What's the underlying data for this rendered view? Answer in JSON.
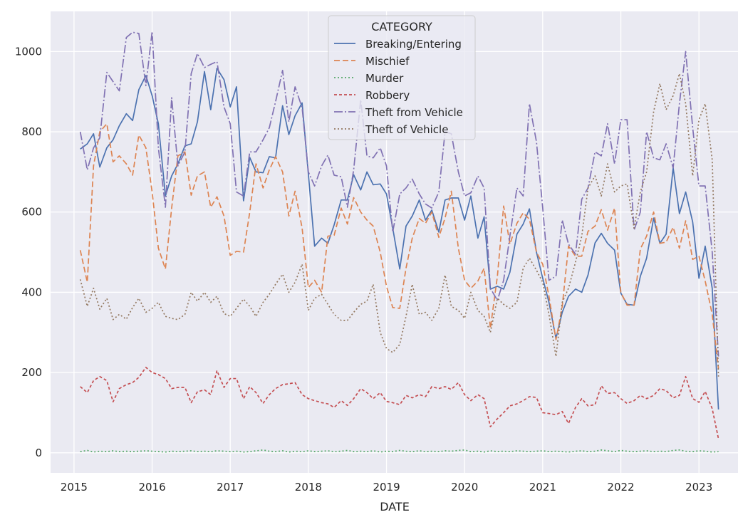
{
  "chart_data": {
    "type": "line",
    "xlabel": "DATE",
    "ylabel": "",
    "xlim": [
      2014.7,
      2023.5
    ],
    "ylim": [
      -50,
      1100
    ],
    "grid": true,
    "x_ticks": [
      2015,
      2016,
      2017,
      2018,
      2019,
      2020,
      2021,
      2022,
      2023
    ],
    "x_tick_labels": [
      "2015",
      "2016",
      "2017",
      "2018",
      "2019",
      "2020",
      "2021",
      "2022",
      "2023"
    ],
    "y_ticks": [
      0,
      200,
      400,
      600,
      800,
      1000
    ],
    "y_tick_labels": [
      "0",
      "200",
      "400",
      "600",
      "800",
      "1000"
    ],
    "legend": {
      "title": "CATEGORY",
      "placement": "top-center"
    },
    "x": [
      2015.08,
      2015.17,
      2015.25,
      2015.33,
      2015.42,
      2015.5,
      2015.58,
      2015.67,
      2015.75,
      2015.83,
      2015.92,
      2016.0,
      2016.08,
      2016.17,
      2016.25,
      2016.33,
      2016.42,
      2016.5,
      2016.58,
      2016.67,
      2016.75,
      2016.83,
      2016.92,
      2017.0,
      2017.08,
      2017.17,
      2017.25,
      2017.33,
      2017.42,
      2017.5,
      2017.58,
      2017.67,
      2017.75,
      2017.83,
      2017.92,
      2018.0,
      2018.08,
      2018.17,
      2018.25,
      2018.33,
      2018.42,
      2018.5,
      2018.58,
      2018.67,
      2018.75,
      2018.83,
      2018.92,
      2019.0,
      2019.08,
      2019.17,
      2019.25,
      2019.33,
      2019.42,
      2019.5,
      2019.58,
      2019.67,
      2019.75,
      2019.83,
      2019.92,
      2020.0,
      2020.08,
      2020.17,
      2020.25,
      2020.33,
      2020.42,
      2020.5,
      2020.58,
      2020.67,
      2020.75,
      2020.83,
      2020.92,
      2021.0,
      2021.08,
      2021.17,
      2021.25,
      2021.33,
      2021.42,
      2021.5,
      2021.58,
      2021.67,
      2021.75,
      2021.83,
      2021.92,
      2022.0,
      2022.08,
      2022.17,
      2022.25,
      2022.33,
      2022.42,
      2022.5,
      2022.58,
      2022.67,
      2022.75,
      2022.83,
      2022.92,
      2023.0,
      2023.08,
      2023.17,
      2023.25
    ],
    "series": [
      {
        "name": "Breaking/Entering",
        "color": "#4c72b0",
        "dash": "solid",
        "values": [
          757,
          770,
          795,
          712,
          760,
          780,
          815,
          845,
          828,
          905,
          940,
          890,
          820,
          640,
          690,
          720,
          765,
          770,
          825,
          950,
          855,
          958,
          930,
          862,
          912,
          628,
          736,
          700,
          698,
          738,
          735,
          865,
          793,
          840,
          872,
          695,
          515,
          535,
          522,
          568,
          630,
          630,
          693,
          655,
          700,
          668,
          670,
          645,
          560,
          458,
          565,
          590,
          630,
          580,
          605,
          550,
          630,
          635,
          635,
          580,
          640,
          535,
          588,
          408,
          415,
          408,
          450,
          545,
          570,
          608,
          500,
          435,
          375,
          285,
          350,
          390,
          408,
          400,
          443,
          523,
          547,
          522,
          505,
          398,
          370,
          368,
          440,
          485,
          585,
          522,
          545,
          710,
          596,
          650,
          575,
          435,
          515,
          410,
          108
        ]
      },
      {
        "name": "Mischief",
        "color": "#dd8452",
        "dash": "8,4",
        "values": [
          505,
          425,
          715,
          800,
          820,
          725,
          740,
          720,
          692,
          792,
          760,
          650,
          510,
          458,
          610,
          740,
          750,
          642,
          690,
          700,
          612,
          638,
          590,
          492,
          502,
          500,
          600,
          720,
          660,
          705,
          738,
          700,
          590,
          652,
          560,
          412,
          430,
          400,
          540,
          542,
          610,
          570,
          636,
          600,
          580,
          565,
          500,
          415,
          362,
          360,
          460,
          535,
          584,
          572,
          600,
          537,
          585,
          652,
          510,
          430,
          410,
          428,
          460,
          310,
          440,
          615,
          520,
          572,
          598,
          582,
          500,
          470,
          390,
          282,
          365,
          515,
          490,
          490,
          552,
          565,
          606,
          555,
          610,
          400,
          368,
          368,
          508,
          540,
          600,
          522,
          525,
          562,
          510,
          578,
          482,
          490,
          428,
          345,
          210
        ]
      },
      {
        "name": "Murder",
        "color": "#55a868",
        "dash": "2,3",
        "values": [
          3,
          6,
          2,
          4,
          3,
          5,
          3,
          4,
          3,
          4,
          5,
          4,
          3,
          2,
          4,
          3,
          4,
          5,
          3,
          4,
          3,
          5,
          4,
          3,
          4,
          2,
          3,
          5,
          7,
          4,
          3,
          5,
          2,
          4,
          3,
          5,
          3,
          4,
          5,
          3,
          4,
          6,
          3,
          4,
          3,
          5,
          2,
          4,
          3,
          6,
          4,
          3,
          5,
          3,
          4,
          3,
          5,
          4,
          6,
          7,
          3,
          4,
          2,
          5,
          3,
          4,
          3,
          5,
          4,
          3,
          4,
          5,
          3,
          4,
          3,
          2,
          4,
          5,
          3,
          4,
          7,
          5,
          3,
          6,
          4,
          3,
          4,
          5,
          3,
          4,
          3,
          6,
          7,
          4,
          3,
          5,
          4,
          2,
          3
        ]
      },
      {
        "name": "Robbery",
        "color": "#c44e52",
        "dash": "4,3",
        "values": [
          165,
          150,
          180,
          190,
          180,
          127,
          160,
          170,
          175,
          188,
          213,
          200,
          195,
          185,
          160,
          163,
          163,
          125,
          152,
          157,
          145,
          205,
          163,
          185,
          185,
          135,
          165,
          150,
          123,
          145,
          160,
          170,
          172,
          175,
          145,
          135,
          130,
          125,
          122,
          113,
          130,
          118,
          135,
          160,
          150,
          135,
          150,
          128,
          125,
          120,
          143,
          137,
          145,
          140,
          165,
          160,
          165,
          158,
          175,
          145,
          130,
          145,
          135,
          65,
          85,
          100,
          117,
          122,
          130,
          140,
          138,
          100,
          98,
          95,
          103,
          73,
          113,
          135,
          117,
          120,
          167,
          148,
          150,
          135,
          123,
          130,
          143,
          135,
          143,
          160,
          155,
          137,
          143,
          190,
          135,
          126,
          153,
          110,
          35
        ]
      },
      {
        "name": "Theft from Vehicle",
        "color": "#8172b3",
        "dash": "12,3,2,3",
        "values": [
          800,
          705,
          760,
          785,
          948,
          925,
          902,
          1035,
          1048,
          1045,
          915,
          1050,
          760,
          612,
          885,
          715,
          750,
          945,
          995,
          960,
          968,
          975,
          862,
          820,
          650,
          640,
          750,
          750,
          780,
          810,
          875,
          953,
          825,
          912,
          860,
          700,
          665,
          715,
          742,
          692,
          688,
          612,
          705,
          880,
          740,
          735,
          760,
          715,
          550,
          645,
          660,
          682,
          645,
          620,
          610,
          650,
          800,
          795,
          700,
          640,
          648,
          690,
          660,
          410,
          380,
          430,
          540,
          660,
          640,
          870,
          775,
          610,
          430,
          440,
          580,
          520,
          495,
          632,
          660,
          750,
          740,
          820,
          720,
          830,
          830,
          555,
          600,
          800,
          735,
          730,
          770,
          710,
          870,
          1000,
          810,
          665,
          665,
          500,
          240
        ]
      },
      {
        "name": "Theft of Vehicle",
        "color": "#937860",
        "dash": "2,3",
        "values": [
          432,
          365,
          410,
          358,
          385,
          332,
          345,
          333,
          362,
          385,
          350,
          360,
          375,
          340,
          335,
          332,
          345,
          400,
          378,
          400,
          375,
          390,
          347,
          340,
          360,
          383,
          365,
          340,
          375,
          395,
          420,
          445,
          400,
          425,
          470,
          355,
          385,
          395,
          370,
          345,
          330,
          330,
          350,
          370,
          378,
          420,
          300,
          260,
          250,
          270,
          340,
          420,
          345,
          350,
          330,
          360,
          443,
          365,
          355,
          335,
          400,
          355,
          340,
          300,
          385,
          370,
          360,
          375,
          460,
          485,
          455,
          425,
          345,
          240,
          375,
          410,
          475,
          540,
          660,
          690,
          640,
          720,
          650,
          665,
          670,
          560,
          650,
          700,
          850,
          920,
          855,
          890,
          945,
          870,
          690,
          830,
          870,
          730,
          190
        ]
      }
    ]
  }
}
